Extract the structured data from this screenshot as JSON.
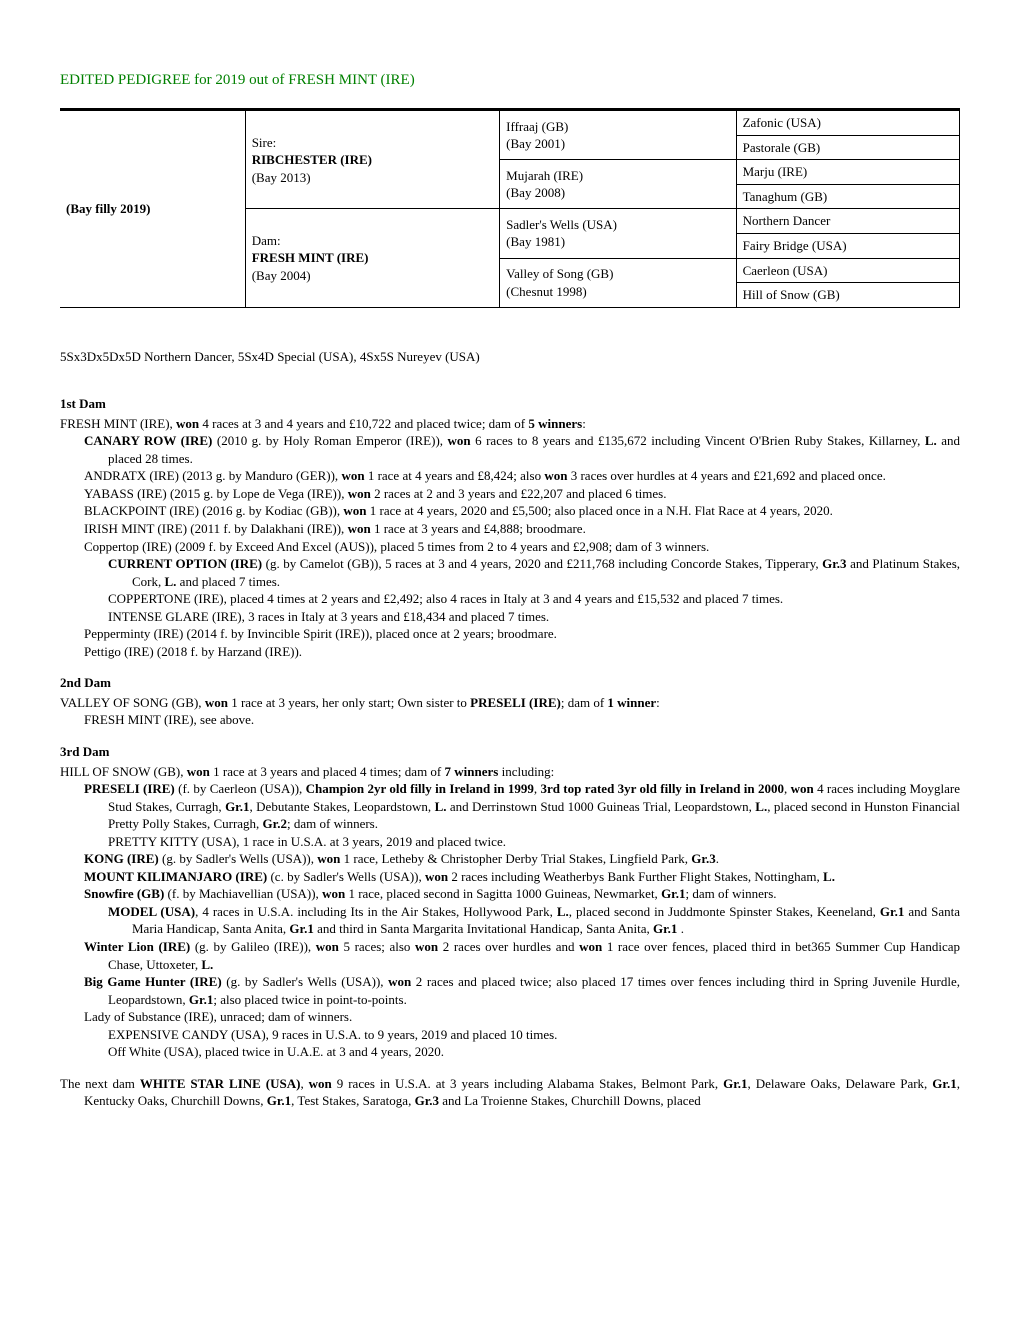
{
  "title": "EDITED PEDIGREE for 2019 out of FRESH MINT (IRE)",
  "pedigree": {
    "gen1": "(Bay filly 2019)",
    "sire_label": "Sire:",
    "sire_name": "RIBCHESTER (IRE)",
    "sire_detail": "(Bay 2013)",
    "dam_label": "Dam:",
    "dam_name": "FRESH MINT (IRE)",
    "dam_detail": "(Bay 2004)",
    "g3": {
      "a": "Iffraaj (GB)",
      "a2": "(Bay 2001)",
      "b": "Mujarah (IRE)",
      "b2": "(Bay 2008)",
      "c": "Sadler's Wells (USA)",
      "c2": "(Bay 1981)",
      "d": "Valley of Song (GB)",
      "d2": "(Chesnut 1998)"
    },
    "g4": {
      "a": "Zafonic (USA)",
      "b": "Pastorale (GB)",
      "c": "Marju (IRE)",
      "d": "Tanaghum (GB)",
      "e": "Northern Dancer",
      "f": "Fairy Bridge (USA)",
      "g": "Caerleon (USA)",
      "h": "Hill of Snow (GB)"
    }
  },
  "inbreeding": "5Sx3Dx5Dx5D Northern Dancer, 5Sx4D Special (USA), 4Sx5S Nureyev (USA)",
  "dam1_head": "1st Dam",
  "dam1": {
    "name": "FRESH MINT (IRE), ",
    "won": "won",
    "rest": " 4 races at 3 and 4 years and £10,722 and placed twice; dam of ",
    "winners": "5 winners",
    "colon": ":"
  },
  "dam1_offspring": [
    {
      "name": "CANARY ROW (IRE)",
      "text1": " (2010 g. by Holy Roman Emperor (IRE)), ",
      "won": "won",
      "text2": " 6 races to 8 years and £135,672 including Vincent O'Brien Ruby Stakes, Killarney, ",
      "grade": "L.",
      "text3": " and placed 28 times."
    },
    {
      "plain_pre": "ANDRATX (IRE) (2013 g. by Manduro (GER)), ",
      "won": "won",
      "mid": " 1 race at 4 years and £8,424; also ",
      "won2": "won",
      "text2": " 3 races over hurdles at 4 years and £21,692 and placed once."
    },
    {
      "plain_pre": "YABASS (IRE) (2015 g. by Lope de Vega (IRE)), ",
      "won": "won",
      "text2": " 2 races at 2 and 3 years and £22,207 and placed 6 times."
    },
    {
      "plain_pre": "BLACKPOINT (IRE) (2016 g. by Kodiac (GB)), ",
      "won": "won",
      "text2": " 1 race at 4 years, 2020 and £5,500; also placed once in a N.H. Flat Race at 4 years, 2020."
    },
    {
      "plain_pre": "IRISH MINT (IRE) (2011 f. by Dalakhani (IRE)), ",
      "won": "won",
      "text2": " 1 race at 3 years and £4,888; broodmare."
    },
    {
      "plain_all": "Coppertop (IRE) (2009 f. by Exceed And Excel (AUS)), placed 5 times from 2 to 4 years and £2,908; dam of 3 winners."
    }
  ],
  "coppertop": [
    {
      "name": "CURRENT OPTION (IRE)",
      "text1": " (g. by Camelot (GB)), 5 races at 3 and 4 years, 2020 and £211,768 including Concorde Stakes, Tipperary, ",
      "g1": "Gr.3",
      "text2": " and Platinum Stakes, Cork, ",
      "g2": "L.",
      "text3": " and placed 7 times."
    },
    {
      "plain_all": "COPPERTONE (IRE), placed 4 times at 2 years and £2,492; also 4 races in Italy at 3 and 4 years and £15,532 and placed 7 times."
    },
    {
      "plain_all": "INTENSE GLARE (IRE), 3 races in Italy at 3 years and £18,434 and placed 7 times."
    }
  ],
  "dam1_tail": [
    "Pepperminty (IRE) (2014 f. by Invincible Spirit (IRE)), placed once at 2 years; broodmare.",
    "Pettigo (IRE) (2018 f. by Harzand (IRE))."
  ],
  "dam2_head": "2nd Dam",
  "dam2": {
    "pre": "VALLEY OF SONG (GB), ",
    "won": "won",
    "mid": " 1 race at 3 years, her only start; Own sister to ",
    "sister": "PRESELI (IRE)",
    "post": "; dam of ",
    "winners": "1 winner",
    "colon": ":"
  },
  "dam2_line": "FRESH MINT (IRE), see above.",
  "dam3_head": "3rd Dam",
  "dam3": {
    "pre": "HILL OF SNOW (GB), ",
    "won": "won",
    "mid": " 1 race at 3 years and placed 4 times; dam of ",
    "winners": "7 winners",
    "post": " including:"
  },
  "preseli": {
    "name": "PRESELI (IRE)",
    "t1": " (f. by Caerleon (USA)), ",
    "b1": "Champion 2yr old filly in Ireland in 1999",
    "c1": ", ",
    "b2": "3rd top rated 3yr old filly in Ireland in 2000",
    "c2": ", ",
    "won": "won",
    "t2": " 4 races including Moyglare Stud Stakes, Curragh, ",
    "g1": "Gr.1",
    "t3": ", Debutante Stakes, Leopardstown, ",
    "g2": "L.",
    "t4": " and Derrinstown Stud 1000 Guineas Trial, Leopardstown, ",
    "g3": "L.",
    "t5": ", placed second in Hunston Financial Pretty Polly Stakes, Curragh, ",
    "g4": "Gr.2",
    "t6": "; dam of winners."
  },
  "pretty_kitty": "PRETTY KITTY (USA), 1 race in U.S.A. at 3 years, 2019 and placed twice.",
  "kong": {
    "name": "KONG (IRE)",
    "t1": " (g. by Sadler's Wells (USA)), ",
    "won": "won",
    "t2": " 1 race, Letheby & Christopher Derby Trial Stakes, Lingfield Park, ",
    "g": "Gr.3",
    "t3": "."
  },
  "mtk": {
    "name": "MOUNT KILIMANJARO (IRE)",
    "t1": " (c. by Sadler's Wells (USA)), ",
    "won": "won",
    "t2": " 2 races including Weatherbys Bank Further Flight Stakes, Nottingham, ",
    "g": "L.",
    "t3": ""
  },
  "snowfire": {
    "name": "Snowfire (GB)",
    "t1": " (f. by Machiavellian (USA)), ",
    "won": "won",
    "t2": " 1 race, placed second in Sagitta 1000 Guineas, Newmarket, ",
    "g": "Gr.1",
    "t3": "; dam of winners."
  },
  "model": {
    "name": "MODEL (USA)",
    "t1": ", 4 races in U.S.A. including Its in the Air Stakes, Hollywood Park, ",
    "g1": "L.",
    "t2": ", placed second in Juddmonte Spinster Stakes, Keeneland, ",
    "g2": "Gr.1",
    "t3": " and Santa Maria Handicap, Santa Anita, ",
    "g3": "Gr.1",
    "t4": " and third in Santa Margarita Invitational Handicap, Santa Anita, ",
    "g4": "Gr.1",
    "t5": " ."
  },
  "winterlion": {
    "name": "Winter Lion (IRE)",
    "t1": " (g. by Galileo (IRE)), ",
    "won": "won",
    "t2": " 5 races; also ",
    "won2": "won",
    "t3": " 2 races over hurdles and ",
    "won3": "won",
    "t4": " 1 race over fences, placed third in bet365 Summer Cup Handicap Chase, Uttoxeter, ",
    "g": "L.",
    "t5": ""
  },
  "bgh": {
    "name": "Big Game Hunter (IRE)",
    "t1": " (g. by Sadler's Wells (USA)), ",
    "won": "won",
    "t2": " 2 races and placed twice; also placed 17 times over fences including third in Spring Juvenile Hurdle, Leopardstown, ",
    "g": "Gr.1",
    "t3": "; also placed twice in point-to-points."
  },
  "lady": "Lady of Substance (IRE), unraced; dam of winners.",
  "lady_kids": [
    "EXPENSIVE CANDY (USA), 9 races in U.S.A. to 9 years, 2019 and placed 10 times.",
    "Off White (USA), placed twice in U.A.E. at 3 and 4 years, 2020."
  ],
  "nextdam": {
    "t0": "The next dam ",
    "name": "WHITE STAR LINE (USA)",
    "t1": ", ",
    "won": "won",
    "t2": " 9 races in U.S.A. at 3 years including Alabama Stakes, Belmont Park, ",
    "g1": "Gr.1",
    "t3": ", Delaware Oaks, Delaware Park, ",
    "g2": "Gr.1",
    "t4": ", Kentucky Oaks, Churchill Downs, ",
    "g3": "Gr.1",
    "t5": ", Test Stakes, Saratoga, ",
    "g4": "Gr.3",
    "t6": " and La Troienne Stakes, Churchill Downs, placed"
  }
}
